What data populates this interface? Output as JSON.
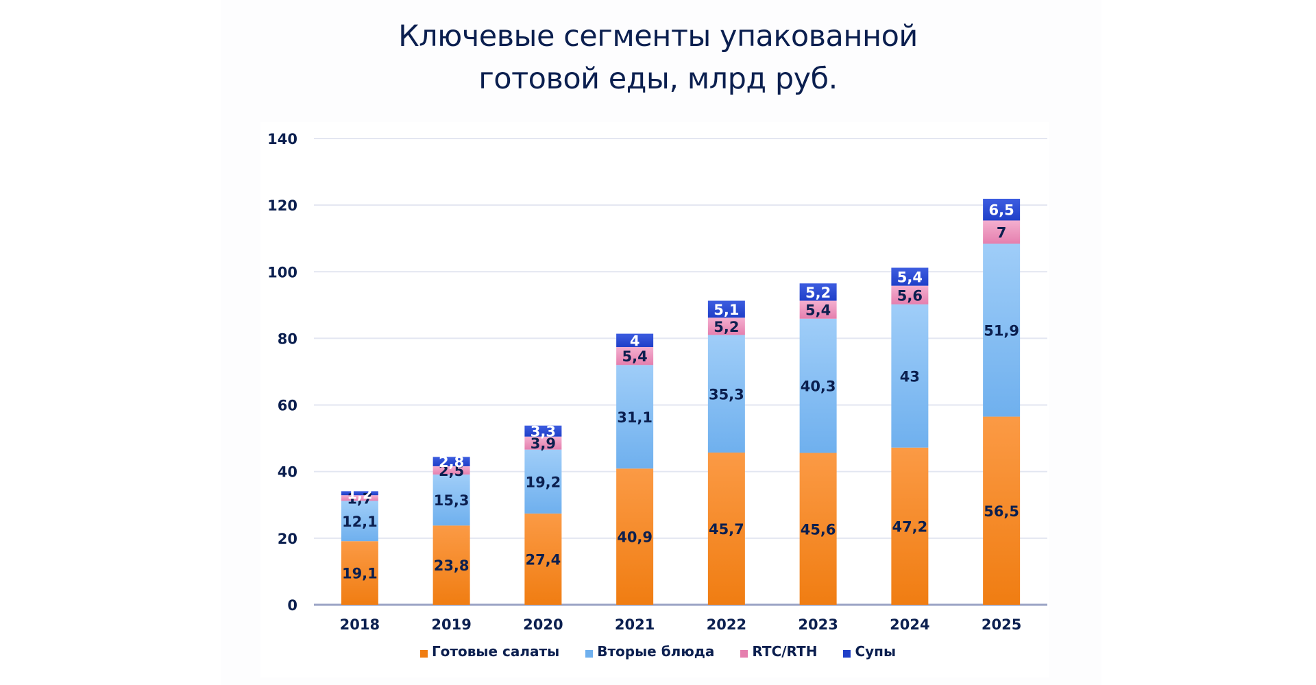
{
  "chart_data": {
    "type": "bar",
    "stacked": true,
    "title": "Ключевые сегменты упакованной готовой еды, млрд руб.",
    "title_lines": [
      "Ключевые сегменты упакованной",
      "готовой еды, млрд руб."
    ],
    "xlabel": "",
    "ylabel": "",
    "ylim": [
      0,
      140
    ],
    "yticks": [
      0,
      20,
      40,
      60,
      80,
      100,
      120,
      140
    ],
    "grid": true,
    "legend_position": "bottom",
    "categories": [
      "2018",
      "2019",
      "2020",
      "2021",
      "2022",
      "2023",
      "2024",
      "2025"
    ],
    "series": [
      {
        "name": "Готовые салаты",
        "color": "#f07d12",
        "color_light": "#fb9a45",
        "label_color": "#0b1f4f",
        "values": [
          19.1,
          23.8,
          27.4,
          40.9,
          45.7,
          45.6,
          47.2,
          56.5
        ],
        "labels": [
          "19,1",
          "23,8",
          "27,4",
          "40,9",
          "45,7",
          "45,6",
          "47,2",
          "56,5"
        ]
      },
      {
        "name": "Вторые блюда",
        "color": "#6fb0ee",
        "color_light": "#9fcdf8",
        "label_color": "#0b1f4f",
        "values": [
          12.1,
          15.3,
          19.2,
          31.1,
          35.3,
          40.3,
          43,
          51.9
        ],
        "labels": [
          "12,1",
          "15,3",
          "19,2",
          "31,1",
          "35,3",
          "40,3",
          "43",
          "51,9"
        ]
      },
      {
        "name": "RTC/RTH",
        "color": "#e57fae",
        "color_light": "#f4afcf",
        "label_color": "#0b1f4f",
        "values": [
          1.7,
          2.5,
          3.9,
          5.4,
          5.2,
          5.4,
          5.6,
          7
        ],
        "labels": [
          "1,7",
          "2,5",
          "3,9",
          "5,4",
          "5,2",
          "5,4",
          "5,6",
          "7"
        ]
      },
      {
        "name": "Супы",
        "color": "#1f3fc8",
        "color_light": "#3d5de0",
        "label_color": "#ffffff",
        "values": [
          1.2,
          2.8,
          3.3,
          4,
          5.1,
          5.2,
          5.4,
          6.5
        ],
        "labels": [
          "1,2",
          "2,8",
          "3,3",
          "4",
          "5,1",
          "5,2",
          "5,4",
          "6,5"
        ]
      }
    ]
  }
}
